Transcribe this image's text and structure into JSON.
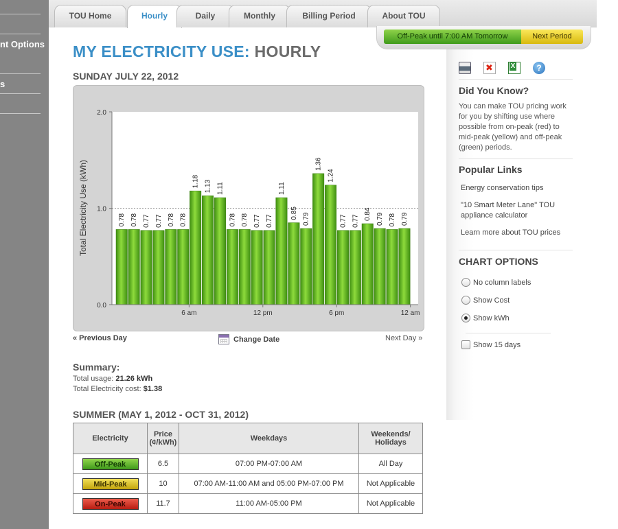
{
  "sidebar": {
    "items": [
      {
        "label": "nt Options"
      },
      {
        "label": "s"
      }
    ]
  },
  "tabs": [
    {
      "label": "TOU Home",
      "active": false
    },
    {
      "label": "Hourly",
      "active": true
    },
    {
      "label": "Daily",
      "active": false
    },
    {
      "label": "Monthly",
      "active": false
    },
    {
      "label": "Billing Period",
      "active": false
    },
    {
      "label": "About TOU",
      "active": false
    }
  ],
  "period": {
    "current": "Off-Peak until 7:00 AM Tomorrow",
    "next": "Next Period"
  },
  "title": {
    "prefix": "MY ELECTRICITY USE:",
    "suffix": "HOURLY"
  },
  "date_heading": "SUNDAY JULY 22, 2012",
  "chart_data": {
    "type": "bar",
    "categories": [
      "1",
      "2",
      "3",
      "4",
      "5",
      "6",
      "7",
      "8",
      "9",
      "10",
      "11",
      "12",
      "13",
      "14",
      "15",
      "16",
      "17",
      "18",
      "19",
      "20",
      "21",
      "22",
      "23",
      "24"
    ],
    "values": [
      0.78,
      0.78,
      0.77,
      0.77,
      0.78,
      0.78,
      1.18,
      1.13,
      1.11,
      0.78,
      0.78,
      0.77,
      0.77,
      1.11,
      0.85,
      0.79,
      1.36,
      1.24,
      0.77,
      0.77,
      0.84,
      0.79,
      0.78,
      0.79
    ],
    "labels": [
      "0.78",
      "0.78",
      "0.77",
      "0.77",
      "0.78",
      "0.78",
      "1.18",
      "1.13",
      "1.11",
      "0.78",
      "0.78",
      "0.77",
      "0.77",
      "1.11",
      "0.85",
      "0.79",
      "1.36",
      "1.24",
      "0.77",
      "0.77",
      "0.84",
      "0.79",
      "0.78",
      "0.79"
    ],
    "ylabel": "Total Electricity Use (kWh)",
    "ylim": [
      0,
      2.0
    ],
    "yticks": [
      "0.0",
      "1.0",
      "2.0"
    ],
    "xticks": [
      {
        "label": "6 am",
        "after_bar": 6
      },
      {
        "label": "12 pm",
        "after_bar": 12
      },
      {
        "label": "6 pm",
        "after_bar": 18
      },
      {
        "label": "12 am",
        "after_bar": 24
      }
    ],
    "bar_color": "#5fae1c",
    "grid": "dotted line at 1.0"
  },
  "nav": {
    "prev": "« Previous Day",
    "change": "Change Date",
    "next": "Next Day »"
  },
  "summary": {
    "title": "Summary:",
    "usage_label": "Total usage:",
    "usage_value": "21.26 kWh",
    "cost_label": "Total Electricity cost:",
    "cost_value": "$1.38"
  },
  "season": {
    "heading": "SUMMER (MAY 1, 2012 - OCT 31, 2012)",
    "headers": {
      "electricity": "Electricity",
      "price_line1": "Price",
      "price_line2": "(¢/kWh)",
      "weekdays": "Weekdays",
      "weekends_line1": "Weekends/",
      "weekends_line2": "Holidays"
    },
    "rows": [
      {
        "period": "Off-Peak",
        "price": "6.5",
        "weekdays": "07:00 PM-07:00 AM",
        "weekends": "All Day",
        "color": "#4fa51f"
      },
      {
        "period": "Mid-Peak",
        "price": "10",
        "weekdays": "07:00 AM-11:00 AM and 05:00 PM-07:00 PM",
        "weekends": "Not Applicable",
        "color": "#d9bd1a"
      },
      {
        "period": "On-Peak",
        "price": "11.7",
        "weekdays": "11:00 AM-05:00 PM",
        "weekends": "Not Applicable",
        "color": "#d0281a"
      }
    ]
  },
  "tools": {
    "print": "print-icon",
    "pdf": "pdf-icon",
    "excel": "excel-icon",
    "help": "?"
  },
  "did_you_know": {
    "title": "Did You Know?",
    "text": "You can make TOU pricing work for you by shifting use where possible from on-peak (red) to mid-peak (yellow) and off-peak (green) periods."
  },
  "popular_links": {
    "title": "Popular Links",
    "items": [
      "Energy conservation tips",
      "\"10 Smart Meter Lane\" TOU appliance calculator",
      "Learn more about TOU prices"
    ]
  },
  "chart_options": {
    "title": "CHART OPTIONS",
    "radios": [
      {
        "label": "No column labels",
        "selected": false
      },
      {
        "label": "Show Cost",
        "selected": false
      },
      {
        "label": "Show kWh",
        "selected": true
      }
    ],
    "checkbox": {
      "label": "Show 15 days",
      "checked": false
    }
  }
}
